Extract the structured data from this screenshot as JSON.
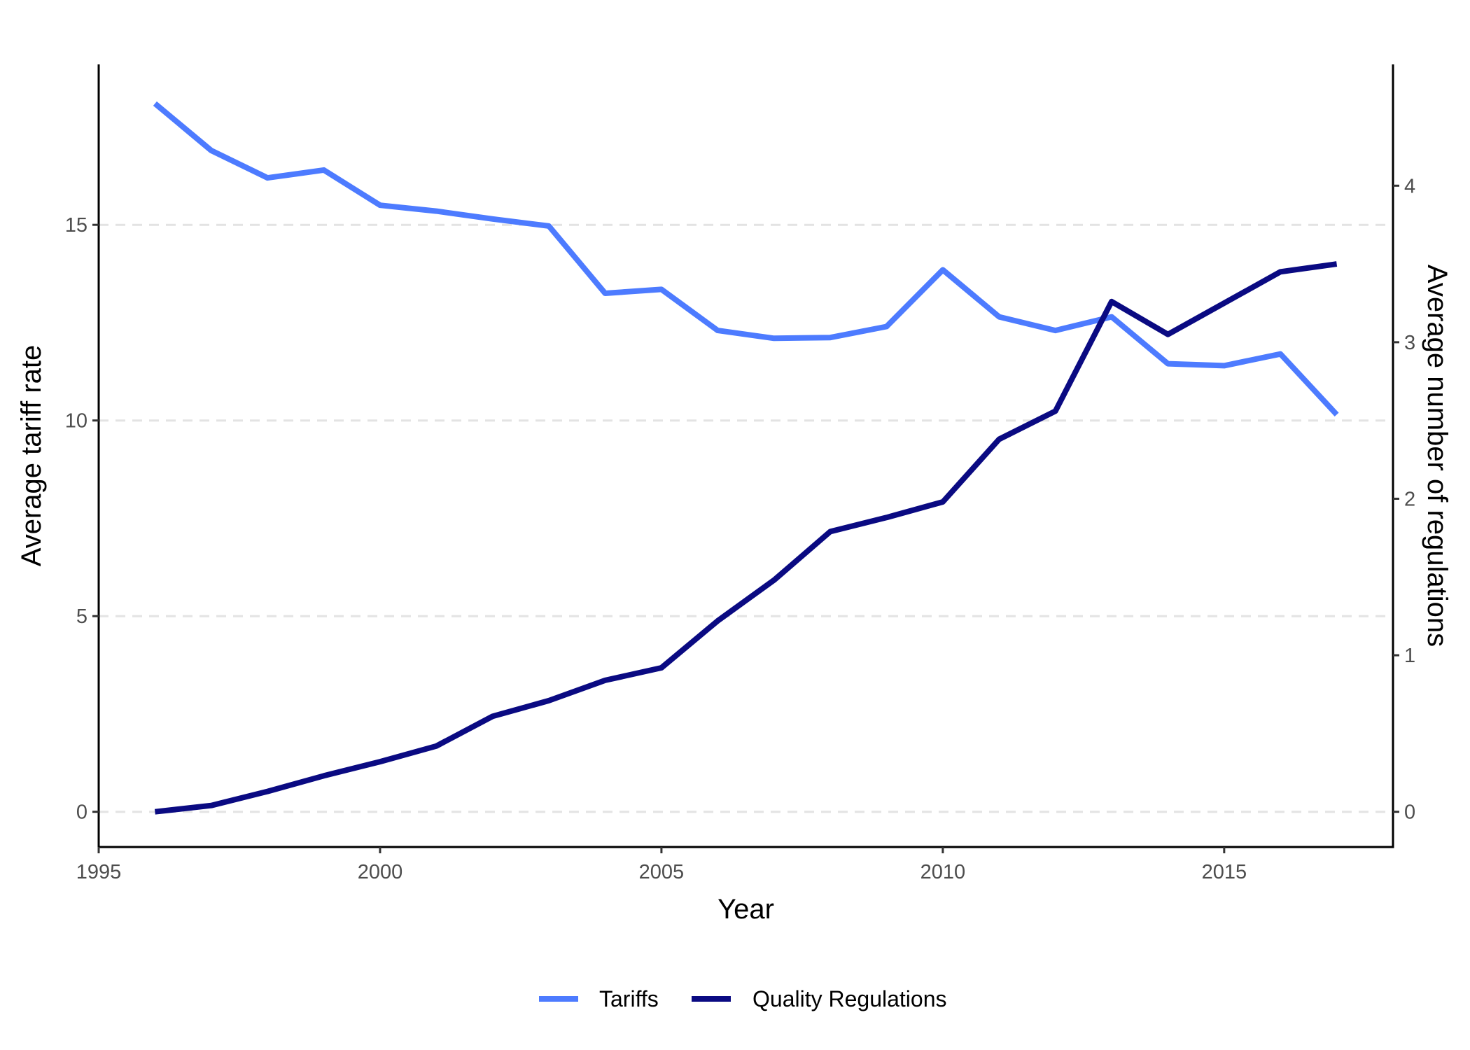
{
  "chart_data": {
    "type": "line",
    "x": [
      1996,
      1997,
      1998,
      1999,
      2000,
      2001,
      2002,
      2003,
      2004,
      2005,
      2006,
      2007,
      2008,
      2009,
      2010,
      2011,
      2012,
      2013,
      2014,
      2015,
      2016,
      2017
    ],
    "xlabel": "Year",
    "ylabel": "Average tariff rate",
    "y2label": "Average number of regulations",
    "xlim": [
      1995,
      2018
    ],
    "ylim": [
      -0.9,
      19.1
    ],
    "y2lim": [
      -0.225,
      4.775
    ],
    "x_ticks": [
      "1995",
      "2000",
      "2005",
      "2010",
      "2015"
    ],
    "x_tick_values": [
      1995,
      2000,
      2005,
      2010,
      2015
    ],
    "y_ticks": [
      "0",
      "5",
      "10",
      "15"
    ],
    "y_tick_values": [
      0,
      5,
      10,
      15
    ],
    "y2_ticks": [
      "0",
      "1",
      "2",
      "3",
      "4"
    ],
    "y2_tick_values": [
      0,
      1,
      2,
      3,
      4
    ],
    "grid": "horizontal dashed at left-axis ticks",
    "legend_position": "bottom",
    "series": [
      {
        "name": "Tariffs",
        "axis": "left",
        "color": "#4d7bff",
        "values": [
          18.1,
          16.9,
          16.2,
          16.4,
          15.5,
          15.35,
          15.15,
          14.97,
          13.25,
          13.35,
          12.3,
          12.1,
          12.12,
          12.4,
          13.85,
          12.65,
          12.3,
          12.65,
          11.45,
          11.4,
          11.7,
          10.15
        ]
      },
      {
        "name": "Quality Regulations",
        "axis": "right",
        "color": "#0a0a82",
        "values": [
          0.0,
          0.04,
          0.13,
          0.23,
          0.32,
          0.42,
          0.61,
          0.71,
          0.84,
          0.92,
          1.22,
          1.48,
          1.79,
          1.88,
          1.98,
          2.38,
          2.56,
          3.26,
          3.05,
          3.25,
          3.45,
          3.5
        ]
      }
    ]
  }
}
